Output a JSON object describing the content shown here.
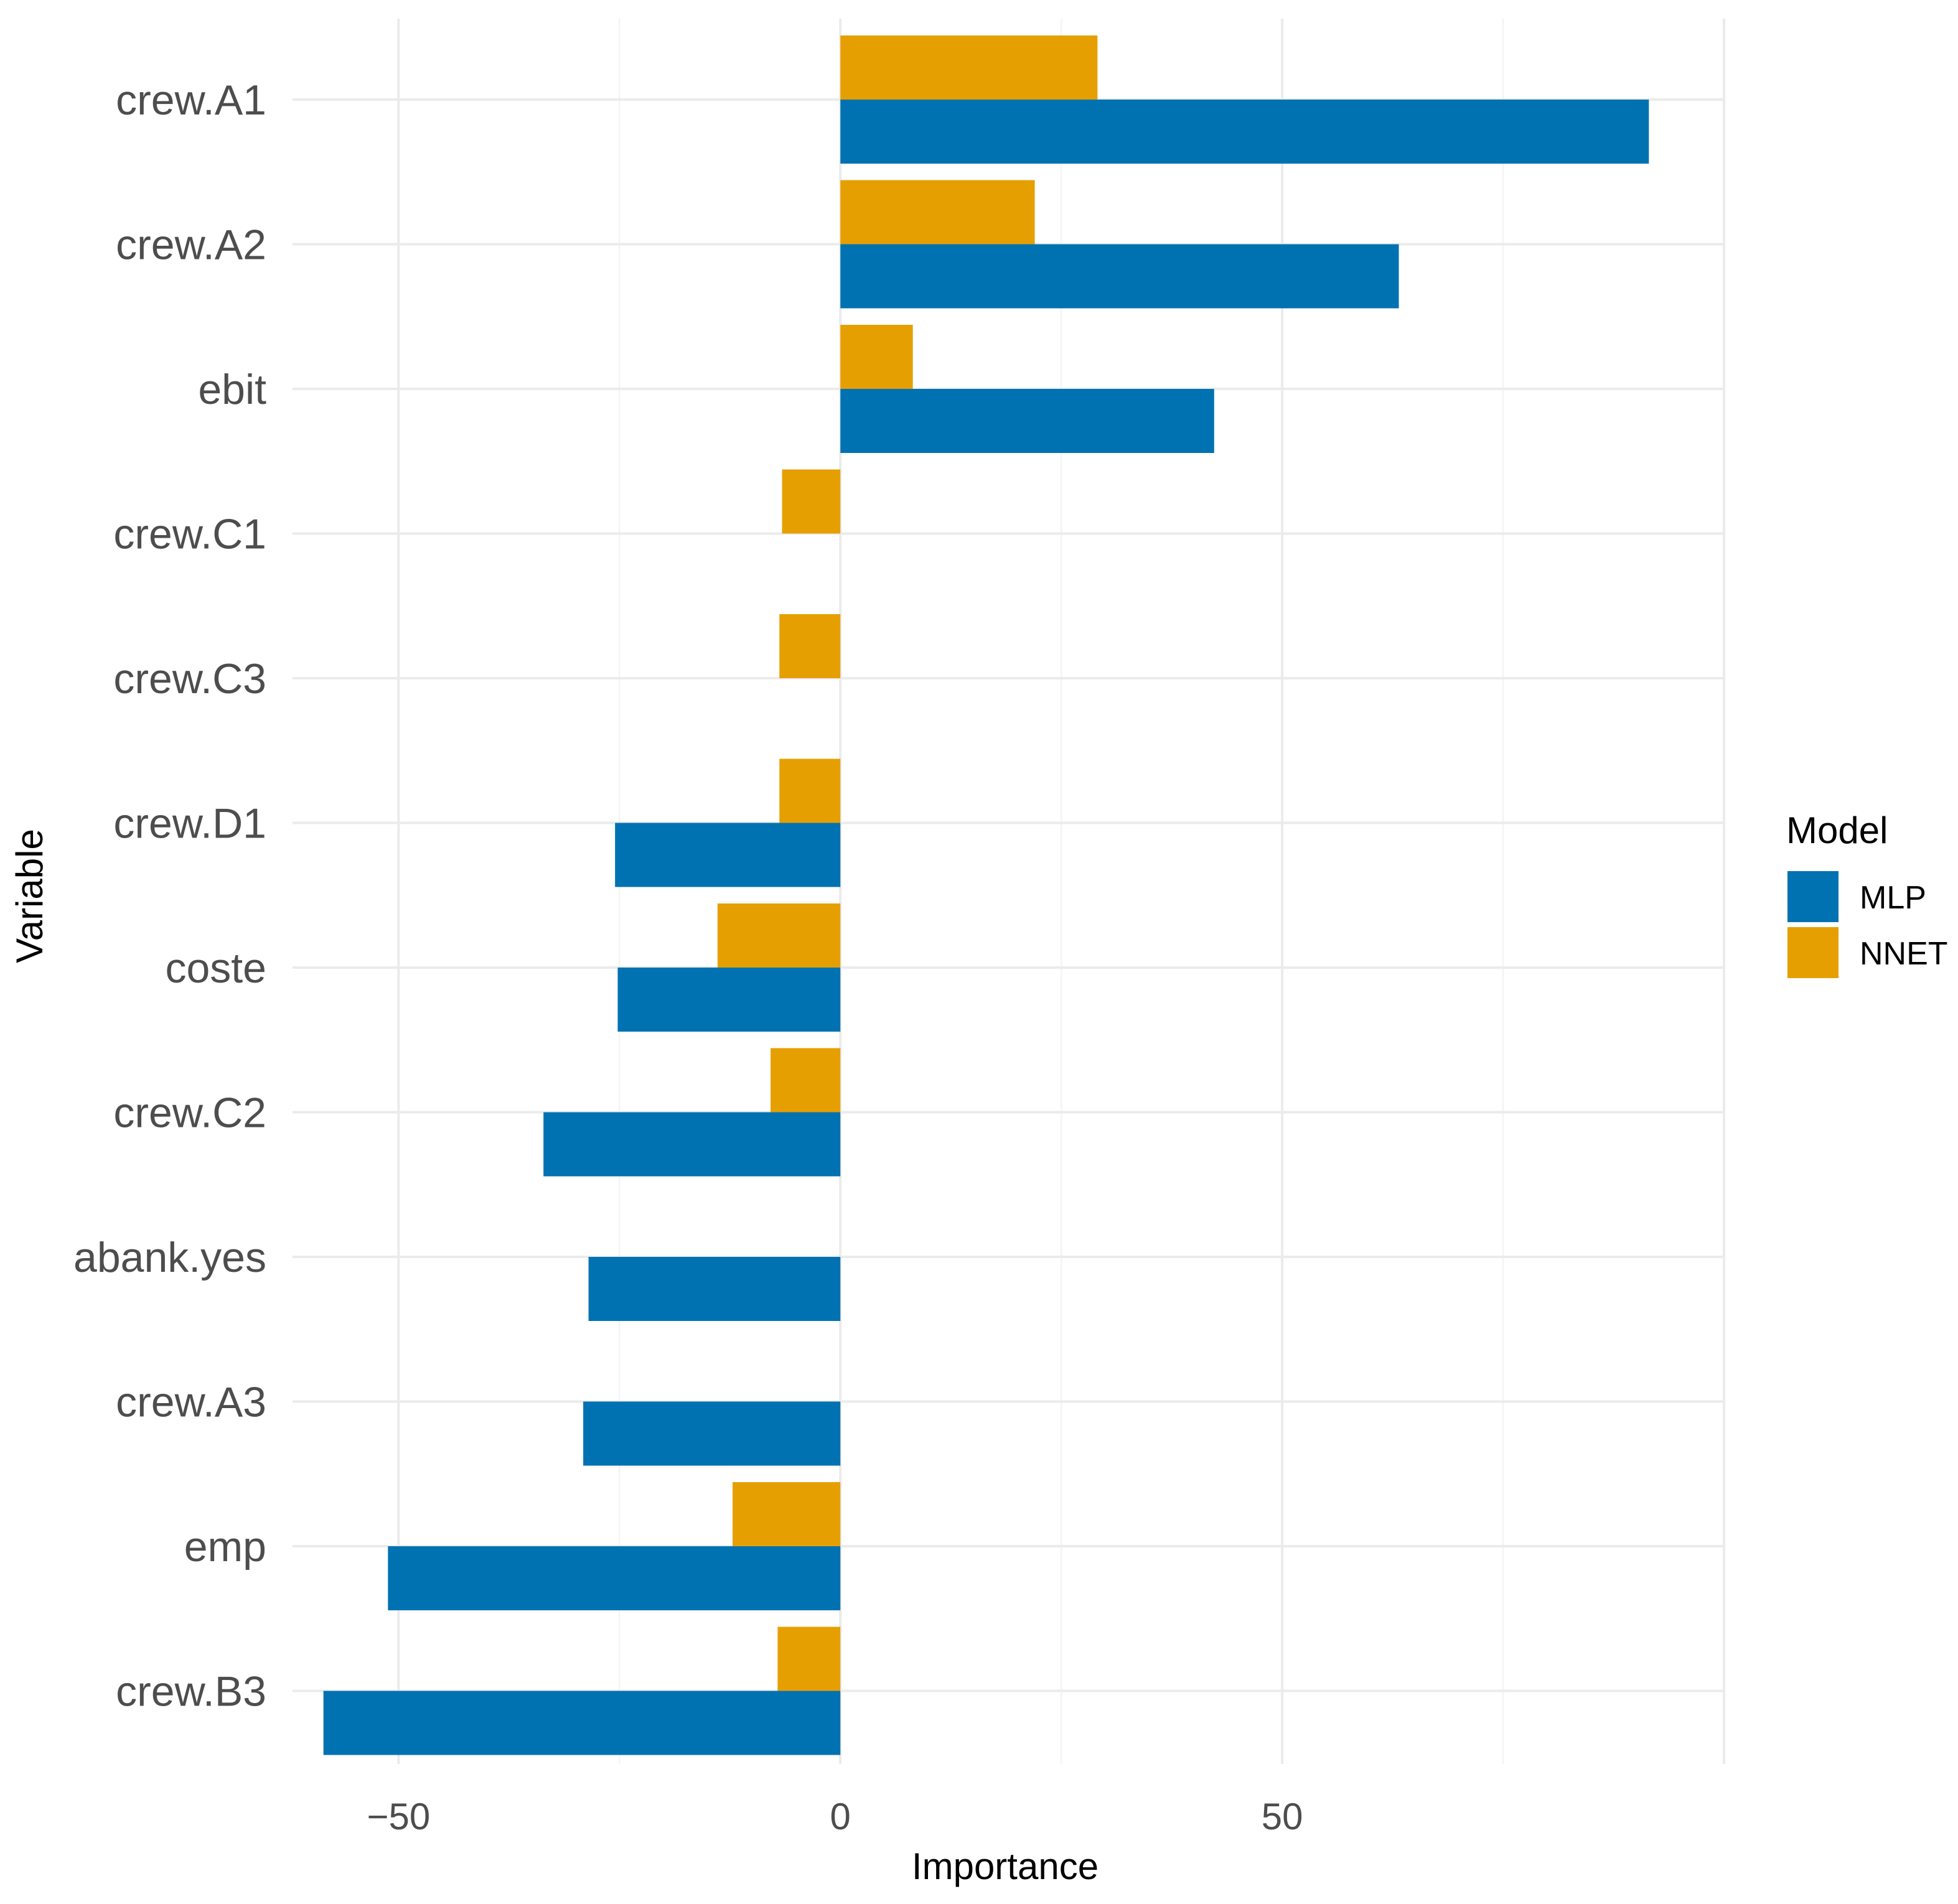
{
  "chart_data": {
    "type": "bar",
    "orientation": "horizontal",
    "title": "",
    "xlabel": "Importance",
    "ylabel": "Variable",
    "xlim": [
      -62,
      100
    ],
    "xticks": [
      -50,
      0,
      50
    ],
    "xtick_labels": [
      "−50",
      "0",
      "50"
    ],
    "categories": [
      "crew.A1",
      "crew.A2",
      "ebit",
      "crew.C1",
      "crew.C3",
      "crew.D1",
      "coste",
      "crew.C2",
      "abank.yes",
      "crew.A3",
      "emp",
      "crew.B3"
    ],
    "series": [
      {
        "name": "MLP",
        "color": "#0072B2",
        "values": [
          91.5,
          63.2,
          42.3,
          null,
          null,
          -25.5,
          -25.2,
          -33.6,
          -28.5,
          -29.1,
          -51.2,
          -58.5
        ]
      },
      {
        "name": "NNET",
        "color": "#E69F00",
        "values": [
          29.1,
          22.0,
          8.2,
          -6.6,
          -6.9,
          -6.9,
          -13.9,
          -7.9,
          null,
          null,
          -12.2,
          -7.1
        ]
      }
    ],
    "legend": {
      "title": "Model",
      "position": "right",
      "entries": [
        {
          "label": "MLP",
          "color": "#0072B2"
        },
        {
          "label": "NNET",
          "color": "#E69F00"
        }
      ]
    },
    "grid": true
  }
}
